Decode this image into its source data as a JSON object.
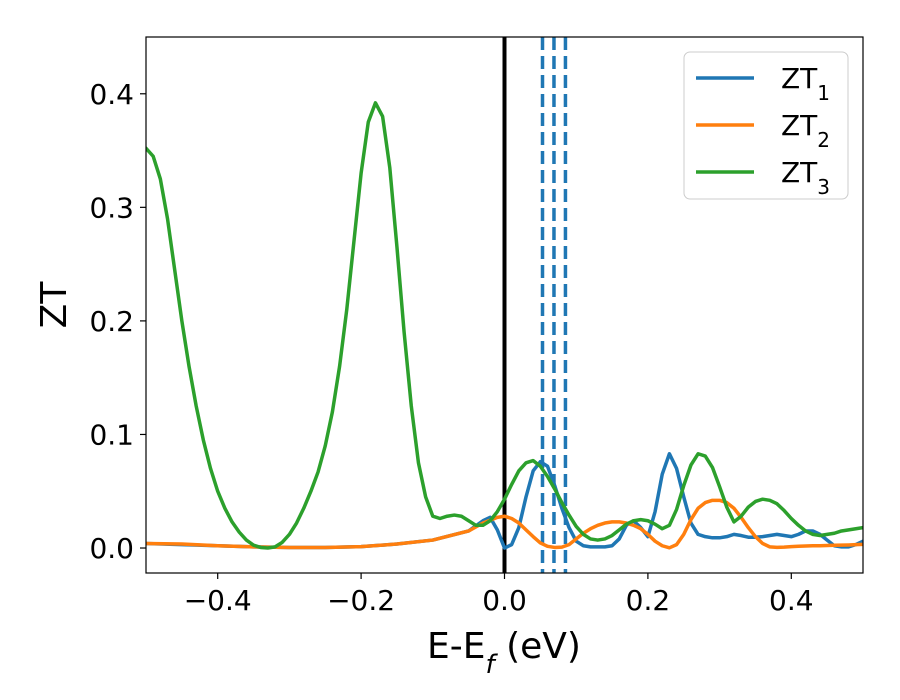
{
  "chart_data": {
    "type": "line",
    "title": "",
    "xlabel": "E-E",
    "xlabel_sub": "f",
    "xlabel_unit": " (eV)",
    "ylabel": "ZT",
    "xlim": [
      -0.5,
      0.5
    ],
    "ylim": [
      -0.022,
      0.45
    ],
    "xticks": [
      -0.4,
      -0.2,
      0.0,
      0.2,
      0.4
    ],
    "xtick_labels": [
      "−0.4",
      "−0.2",
      "0.0",
      "0.2",
      "0.4"
    ],
    "yticks": [
      0.0,
      0.1,
      0.2,
      0.3,
      0.4
    ],
    "ytick_labels": [
      "0.0",
      "0.1",
      "0.2",
      "0.3",
      "0.4"
    ],
    "grid": false,
    "legend_position": "top-right",
    "series": [
      {
        "name": "ZT",
        "subscript": "1",
        "color": "#1f77b4",
        "x": [
          -0.5,
          -0.45,
          -0.4,
          -0.35,
          -0.3,
          -0.25,
          -0.2,
          -0.15,
          -0.1,
          -0.05,
          -0.03,
          -0.02,
          -0.01,
          0.0,
          0.01,
          0.02,
          0.03,
          0.04,
          0.05,
          0.06,
          0.07,
          0.08,
          0.09,
          0.1,
          0.11,
          0.12,
          0.13,
          0.14,
          0.15,
          0.16,
          0.17,
          0.18,
          0.19,
          0.2,
          0.21,
          0.22,
          0.23,
          0.24,
          0.25,
          0.26,
          0.27,
          0.28,
          0.29,
          0.3,
          0.31,
          0.32,
          0.33,
          0.34,
          0.35,
          0.36,
          0.37,
          0.38,
          0.39,
          0.4,
          0.41,
          0.42,
          0.43,
          0.44,
          0.45,
          0.46,
          0.47,
          0.48,
          0.49,
          0.5
        ],
        "y": [
          0.004,
          0.003,
          0.002,
          0.001,
          0.0005,
          0.0005,
          0.0012,
          0.0035,
          0.007,
          0.015,
          0.024,
          0.027,
          0.016,
          0.0,
          0.003,
          0.018,
          0.045,
          0.068,
          0.076,
          0.072,
          0.055,
          0.035,
          0.018,
          0.006,
          0.002,
          0.001,
          0.001,
          0.001,
          0.002,
          0.008,
          0.02,
          0.024,
          0.018,
          0.01,
          0.032,
          0.065,
          0.083,
          0.07,
          0.045,
          0.022,
          0.012,
          0.01,
          0.009,
          0.009,
          0.01,
          0.012,
          0.011,
          0.0095,
          0.0095,
          0.01,
          0.011,
          0.012,
          0.011,
          0.01,
          0.012,
          0.015,
          0.015,
          0.012,
          0.007,
          0.002,
          0.001,
          0.001,
          0.003,
          0.006
        ]
      },
      {
        "name": "ZT",
        "subscript": "2",
        "color": "#ff7f0e",
        "x": [
          -0.5,
          -0.45,
          -0.4,
          -0.35,
          -0.3,
          -0.25,
          -0.2,
          -0.15,
          -0.1,
          -0.05,
          -0.03,
          -0.01,
          0.0,
          0.01,
          0.02,
          0.03,
          0.04,
          0.05,
          0.06,
          0.07,
          0.08,
          0.09,
          0.1,
          0.11,
          0.12,
          0.13,
          0.14,
          0.15,
          0.16,
          0.17,
          0.18,
          0.19,
          0.2,
          0.21,
          0.22,
          0.23,
          0.24,
          0.25,
          0.26,
          0.27,
          0.28,
          0.29,
          0.3,
          0.31,
          0.32,
          0.33,
          0.34,
          0.35,
          0.36,
          0.37,
          0.38,
          0.39,
          0.4,
          0.41,
          0.42,
          0.43,
          0.44,
          0.45,
          0.46,
          0.47,
          0.48,
          0.49,
          0.5
        ],
        "y": [
          0.004,
          0.0035,
          0.002,
          0.001,
          0.0005,
          0.0005,
          0.0012,
          0.0035,
          0.007,
          0.015,
          0.022,
          0.027,
          0.028,
          0.026,
          0.022,
          0.016,
          0.01,
          0.0045,
          0.0015,
          0.0005,
          0.0008,
          0.003,
          0.008,
          0.013,
          0.017,
          0.02,
          0.022,
          0.023,
          0.023,
          0.022,
          0.02,
          0.017,
          0.012,
          0.006,
          0.002,
          0.0002,
          0.003,
          0.012,
          0.025,
          0.035,
          0.04,
          0.042,
          0.042,
          0.04,
          0.035,
          0.027,
          0.018,
          0.01,
          0.004,
          0.001,
          0.0006,
          0.0008,
          0.0012,
          0.0015,
          0.0018,
          0.002,
          0.002,
          0.0022,
          0.0024,
          0.0025,
          0.0027,
          0.003,
          0.0032
        ]
      },
      {
        "name": "ZT",
        "subscript": "3",
        "color": "#2ca02c",
        "x": [
          -0.5,
          -0.49,
          -0.48,
          -0.47,
          -0.46,
          -0.45,
          -0.44,
          -0.43,
          -0.42,
          -0.41,
          -0.4,
          -0.39,
          -0.38,
          -0.37,
          -0.36,
          -0.35,
          -0.34,
          -0.33,
          -0.32,
          -0.31,
          -0.3,
          -0.29,
          -0.28,
          -0.27,
          -0.26,
          -0.25,
          -0.24,
          -0.23,
          -0.22,
          -0.21,
          -0.2,
          -0.19,
          -0.18,
          -0.17,
          -0.16,
          -0.15,
          -0.14,
          -0.13,
          -0.12,
          -0.11,
          -0.1,
          -0.09,
          -0.08,
          -0.07,
          -0.06,
          -0.05,
          -0.04,
          -0.03,
          -0.02,
          -0.01,
          0.0,
          0.01,
          0.02,
          0.03,
          0.04,
          0.05,
          0.06,
          0.07,
          0.08,
          0.09,
          0.1,
          0.11,
          0.12,
          0.13,
          0.14,
          0.15,
          0.16,
          0.17,
          0.18,
          0.19,
          0.2,
          0.21,
          0.22,
          0.23,
          0.24,
          0.25,
          0.26,
          0.27,
          0.28,
          0.29,
          0.3,
          0.31,
          0.32,
          0.33,
          0.34,
          0.35,
          0.36,
          0.37,
          0.38,
          0.39,
          0.4,
          0.41,
          0.42,
          0.43,
          0.44,
          0.45,
          0.46,
          0.47,
          0.48,
          0.49,
          0.5
        ],
        "y": [
          0.352,
          0.345,
          0.325,
          0.29,
          0.245,
          0.2,
          0.16,
          0.125,
          0.095,
          0.07,
          0.05,
          0.035,
          0.023,
          0.014,
          0.007,
          0.0025,
          0.0005,
          0.0,
          0.001,
          0.005,
          0.012,
          0.022,
          0.035,
          0.05,
          0.067,
          0.09,
          0.12,
          0.16,
          0.21,
          0.27,
          0.33,
          0.375,
          0.392,
          0.38,
          0.335,
          0.265,
          0.19,
          0.125,
          0.075,
          0.045,
          0.028,
          0.026,
          0.028,
          0.029,
          0.028,
          0.024,
          0.02,
          0.02,
          0.024,
          0.032,
          0.043,
          0.056,
          0.068,
          0.075,
          0.077,
          0.072,
          0.063,
          0.052,
          0.04,
          0.029,
          0.019,
          0.012,
          0.008,
          0.007,
          0.008,
          0.011,
          0.016,
          0.021,
          0.024,
          0.025,
          0.024,
          0.021,
          0.017,
          0.02,
          0.034,
          0.055,
          0.073,
          0.083,
          0.081,
          0.071,
          0.054,
          0.036,
          0.023,
          0.028,
          0.036,
          0.041,
          0.043,
          0.042,
          0.039,
          0.033,
          0.026,
          0.02,
          0.015,
          0.012,
          0.011,
          0.012,
          0.013,
          0.015,
          0.016,
          0.017,
          0.018
        ]
      }
    ],
    "vertical_lines": [
      {
        "x": 0.0,
        "style": "solid",
        "color": "#000000"
      },
      {
        "x": 0.053,
        "style": "dashed",
        "color": "#1f77b4"
      },
      {
        "x": 0.069,
        "style": "dashed",
        "color": "#1f77b4"
      },
      {
        "x": 0.085,
        "style": "dashed",
        "color": "#1f77b4"
      }
    ]
  }
}
